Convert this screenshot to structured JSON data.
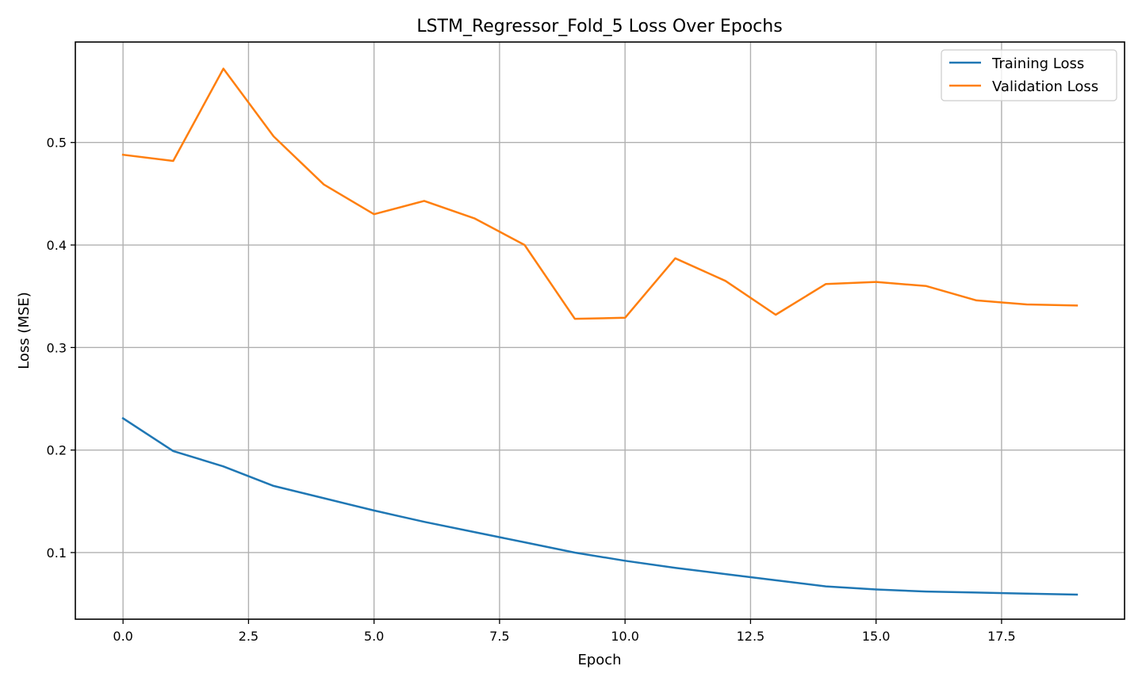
{
  "chart_data": {
    "type": "line",
    "title": "LSTM_Regressor_Fold_5 Loss Over Epochs",
    "xlabel": "Epoch",
    "ylabel": "Loss (MSE)",
    "xlim": [
      -0.95,
      19.95
    ],
    "ylim": [
      0.035,
      0.598
    ],
    "xticks": [
      0.0,
      2.5,
      5.0,
      7.5,
      10.0,
      12.5,
      15.0,
      17.5
    ],
    "xtick_labels": [
      "0.0",
      "2.5",
      "5.0",
      "7.5",
      "10.0",
      "12.5",
      "15.0",
      "17.5"
    ],
    "yticks": [
      0.1,
      0.2,
      0.3,
      0.4,
      0.5
    ],
    "ytick_labels": [
      "0.1",
      "0.2",
      "0.3",
      "0.4",
      "0.5"
    ],
    "grid": true,
    "legend_position": "top-right",
    "x": [
      0,
      1,
      2,
      3,
      4,
      5,
      6,
      7,
      8,
      9,
      10,
      11,
      12,
      13,
      14,
      15,
      16,
      17,
      18,
      19
    ],
    "series": [
      {
        "name": "Training Loss",
        "color": "#1f77b4",
        "values": [
          0.231,
          0.199,
          0.184,
          0.165,
          0.153,
          0.141,
          0.13,
          0.12,
          0.11,
          0.1,
          0.092,
          0.085,
          0.079,
          0.073,
          0.067,
          0.064,
          0.062,
          0.061,
          0.06,
          0.059
        ]
      },
      {
        "name": "Validation Loss",
        "color": "#ff7f0e",
        "values": [
          0.488,
          0.482,
          0.572,
          0.506,
          0.459,
          0.43,
          0.443,
          0.426,
          0.4,
          0.328,
          0.329,
          0.387,
          0.365,
          0.332,
          0.362,
          0.364,
          0.36,
          0.346,
          0.342,
          0.341
        ]
      }
    ]
  }
}
